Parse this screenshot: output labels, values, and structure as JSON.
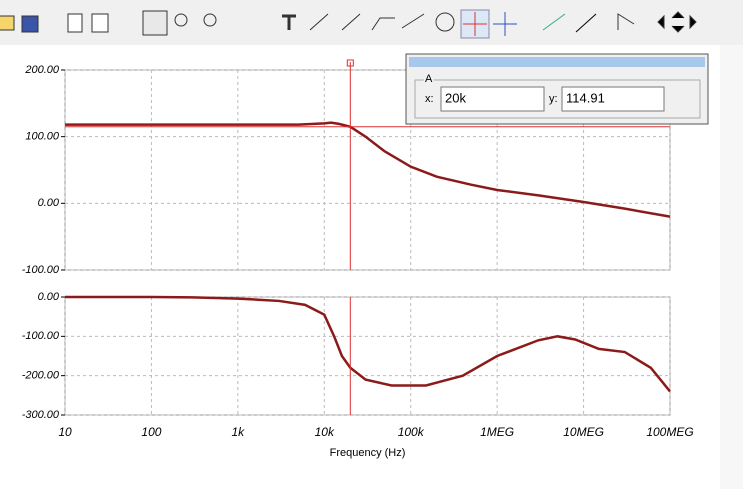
{
  "cursor_panel": {
    "title": "A",
    "x_label": "x:",
    "x_value": "20k",
    "y_label": "y:",
    "y_value": "114.91"
  },
  "chart_data": [
    {
      "type": "line",
      "log_x": true,
      "grid": true,
      "x": [
        10,
        100,
        1000,
        5000,
        10000,
        12000,
        15000,
        20000,
        30000,
        50000,
        100000,
        200000,
        500000,
        1000000,
        3000000,
        10000000,
        30000000,
        100000000
      ],
      "series": [
        {
          "color": "#8b1a1a",
          "values": [
            118,
            118,
            118,
            118,
            120,
            121,
            119,
            114.91,
            100,
            78,
            55,
            40,
            28,
            20,
            12,
            2,
            -8,
            -20
          ]
        }
      ],
      "xlim": [
        10,
        100000000
      ],
      "xticks": [
        10,
        100,
        1000,
        10000,
        100000,
        1000000,
        10000000,
        100000000
      ],
      "ylim": [
        -100,
        200
      ],
      "yticks": [
        {
          "value": -100,
          "label": "-100.00"
        },
        {
          "value": 0,
          "label": "0.00"
        },
        {
          "value": 100,
          "label": "100.00"
        },
        {
          "value": 200,
          "label": "200.00"
        }
      ],
      "cursor_x": 20000,
      "cursor_y": 114.91,
      "cursor_color": "#e03030"
    },
    {
      "type": "line",
      "log_x": true,
      "grid": true,
      "x_label": "Frequency (Hz)",
      "x": [
        10,
        100,
        300,
        1000,
        3000,
        6000,
        10000,
        13000,
        16000,
        20000,
        30000,
        60000,
        150000,
        400000,
        1000000,
        3000000,
        5000000,
        8000000,
        15000000,
        30000000,
        60000000,
        100000000
      ],
      "series": [
        {
          "color": "#8b1a1a",
          "values": [
            0,
            0,
            -1,
            -4,
            -10,
            -20,
            -45,
            -100,
            -150,
            -180,
            -210,
            -225,
            -225,
            -200,
            -150,
            -110,
            -100,
            -108,
            -132,
            -140,
            -180,
            -240
          ]
        }
      ],
      "xlim": [
        10,
        100000000
      ],
      "xticks": [
        10,
        100,
        {
          "value": 1000,
          "label": "1k"
        },
        {
          "value": 10000,
          "label": "10k"
        },
        {
          "value": 100000,
          "label": "100k"
        },
        {
          "value": 1000000,
          "label": "1MEG"
        },
        {
          "value": 10000000,
          "label": "10MEG"
        },
        {
          "value": 100000000,
          "label": "100MEG"
        }
      ],
      "ylim": [
        -300,
        0
      ],
      "yticks": [
        {
          "value": -300,
          "label": "-300.00"
        },
        {
          "value": -200,
          "label": "-200.00"
        },
        {
          "value": -100,
          "label": "-100.00"
        },
        {
          "value": 0,
          "label": "0.00"
        }
      ],
      "cursor_x": 20000,
      "cursor_color": "#e03030"
    }
  ]
}
